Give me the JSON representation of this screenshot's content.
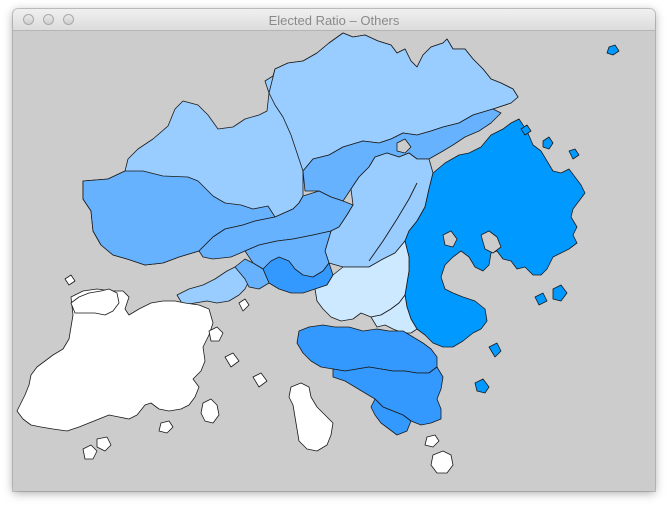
{
  "window": {
    "title": "Elected Ratio – Others",
    "buttons": [
      "close",
      "minimize",
      "zoom"
    ]
  },
  "colors": {
    "background": "#cccccc",
    "level_white": "#ffffff",
    "level_pale": "#cde9ff",
    "level_light": "#99ccff",
    "level_medium": "#66b2ff",
    "level_bright": "#3399ff",
    "level_strong": "#0099ff"
  },
  "map": {
    "subject": "Hong Kong districts",
    "regions": [
      {
        "name": "north-west-region",
        "level": "level_light"
      },
      {
        "name": "north-region",
        "level": "level_light"
      },
      {
        "name": "tai-po-region",
        "level": "level_medium"
      },
      {
        "name": "yuen-long-region",
        "level": "level_medium"
      },
      {
        "name": "tuen-mun-region",
        "level": "level_medium"
      },
      {
        "name": "sha-tin-region",
        "level": "level_light"
      },
      {
        "name": "sai-kung-region",
        "level": "level_strong"
      },
      {
        "name": "tsuen-wan-region",
        "level": "level_medium"
      },
      {
        "name": "kwai-tsing-region",
        "level": "level_bright"
      },
      {
        "name": "kowloon-west-region",
        "level": "level_pale"
      },
      {
        "name": "kowloon-city-region",
        "level": "level_pale"
      },
      {
        "name": "kwun-tong-region",
        "level": "level_light"
      },
      {
        "name": "wong-tai-sin-region",
        "level": "level_medium"
      },
      {
        "name": "hk-island-central-region",
        "level": "level_bright"
      },
      {
        "name": "hk-island-east-region",
        "level": "level_bright"
      },
      {
        "name": "hk-island-south-region",
        "level": "level_bright"
      },
      {
        "name": "lantau-region",
        "level": "level_white"
      }
    ]
  }
}
